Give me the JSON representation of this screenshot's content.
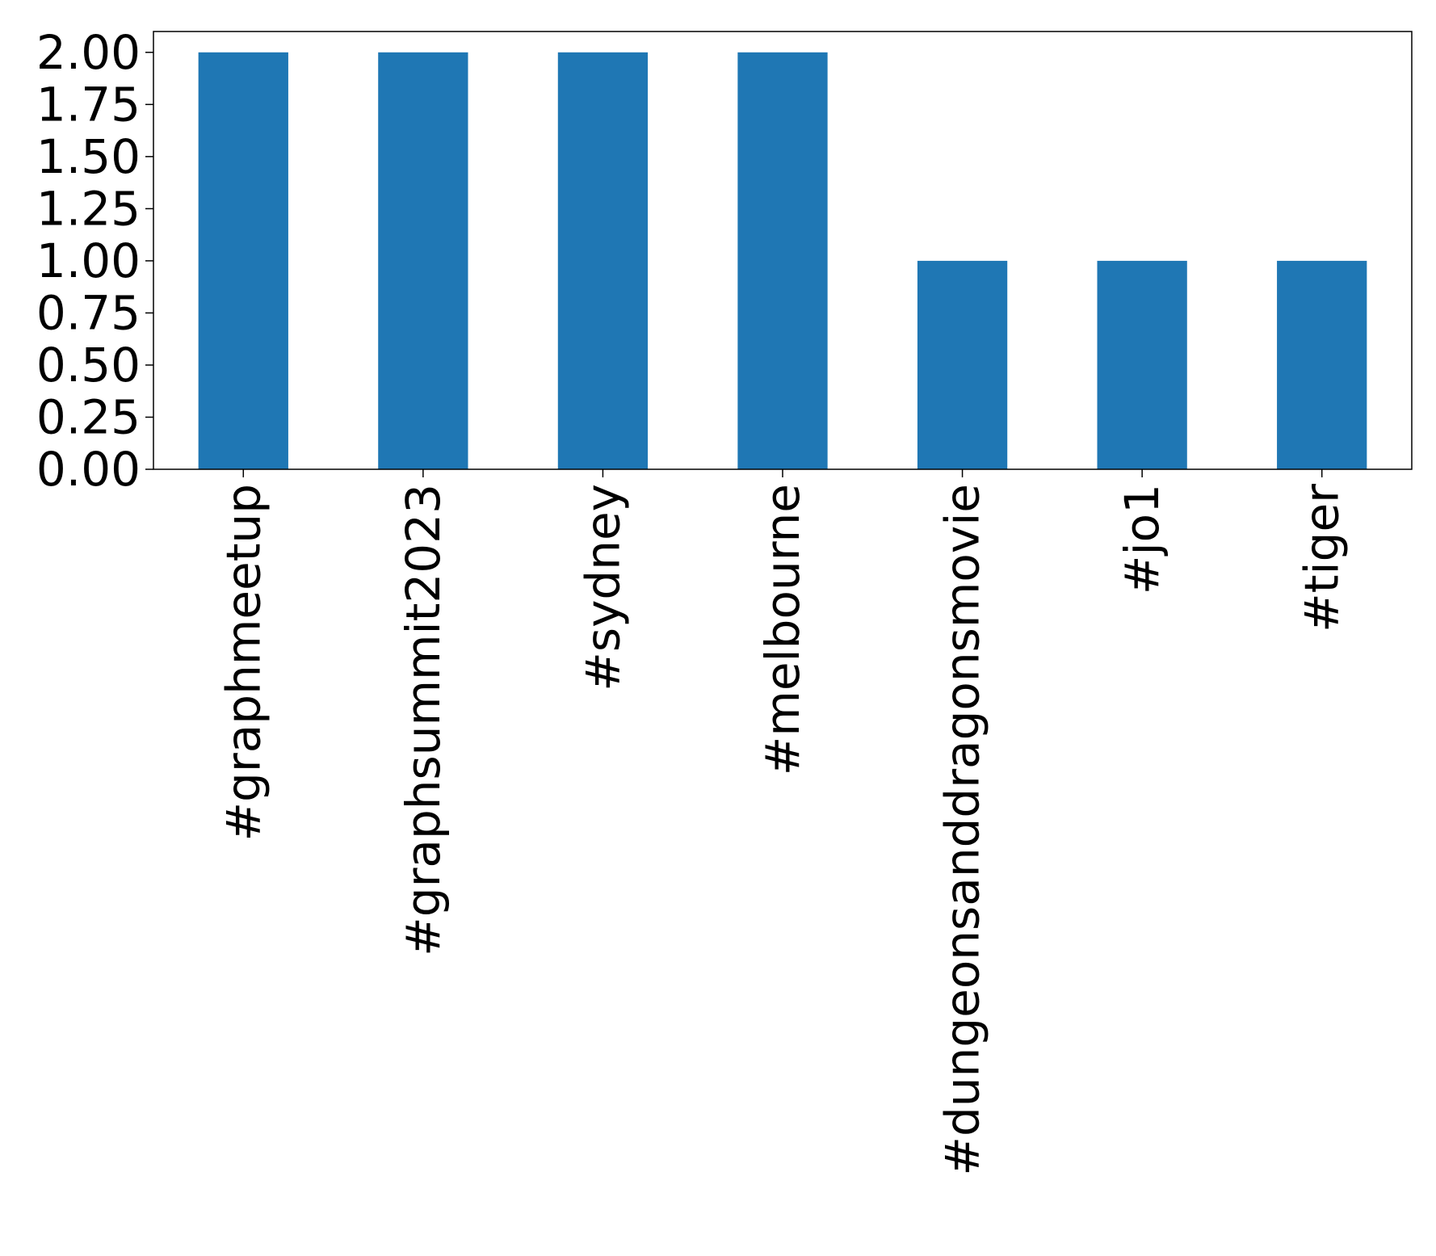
{
  "chart_data": {
    "type": "bar",
    "categories": [
      "#graphmeetup",
      "#graphsummit2023",
      "#sydney",
      "#melbourne",
      "#dungeonsanddragonsmovie",
      "#jo1",
      "#tiger"
    ],
    "values": [
      2,
      2,
      2,
      2,
      1,
      1,
      1
    ],
    "ylim": [
      0,
      2.1
    ],
    "yticks": [
      "0.00",
      "0.25",
      "0.50",
      "0.75",
      "1.00",
      "1.25",
      "1.50",
      "1.75",
      "2.00"
    ],
    "bar_color": "#1f77b4",
    "grid": false,
    "legend": "none"
  }
}
